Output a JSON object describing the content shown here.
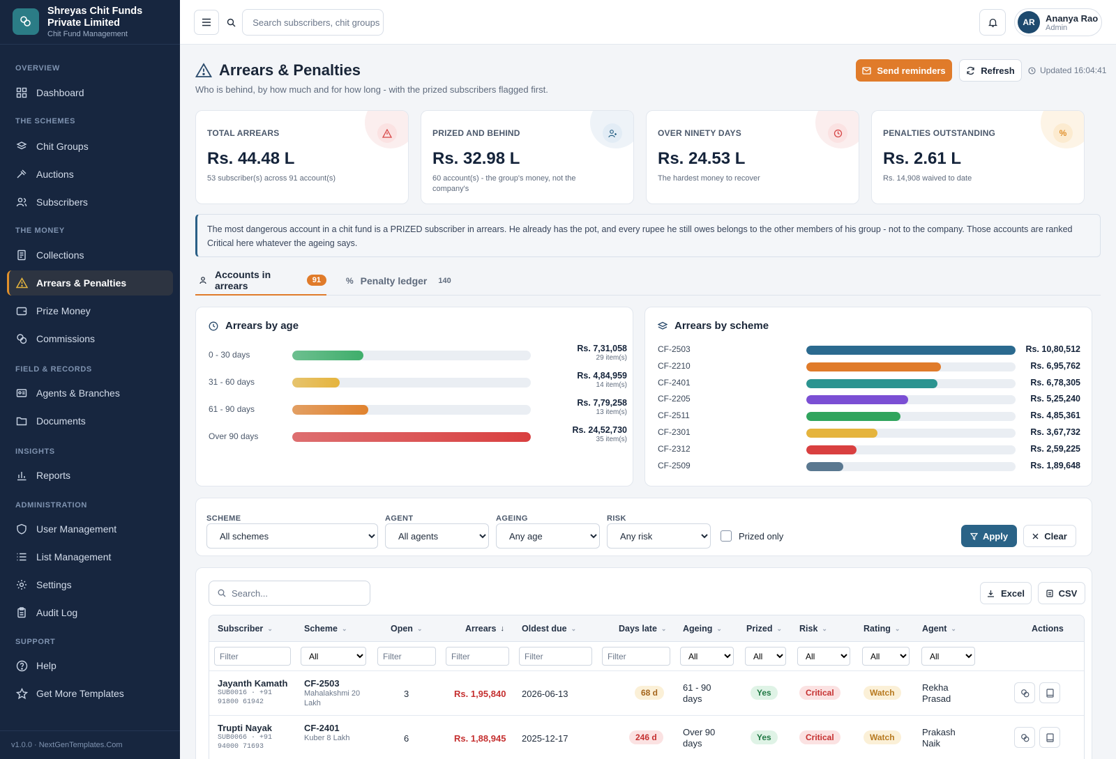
{
  "brand": {
    "name": "Shreyas Chit Funds Private Limited",
    "subtitle": "Chit Fund Management"
  },
  "nav": {
    "sections": [
      "OVERVIEW",
      "THE SCHEMES",
      "THE MONEY",
      "FIELD & RECORDS",
      "INSIGHTS",
      "ADMINISTRATION",
      "SUPPORT"
    ],
    "items": [
      "Dashboard",
      "Chit Groups",
      "Auctions",
      "Subscribers",
      "Collections",
      "Arrears & Penalties",
      "Prize Money",
      "Commissions",
      "Agents & Branches",
      "Documents",
      "Reports",
      "User Management",
      "List Management",
      "Settings",
      "Audit Log",
      "Help",
      "Get More Templates"
    ],
    "active": "Arrears & Penalties"
  },
  "version": "v1.0.0 · NextGenTemplates.Com",
  "topbar": {
    "search_placeholder": "Search subscribers, chit groups",
    "user_initials": "AR",
    "user_name": "Ananya Rao",
    "user_role": "Admin"
  },
  "page": {
    "title": "Arrears & Penalties",
    "subtitle": "Who is behind, by how much and for how long - with the prized subscribers flagged first.",
    "send_label": "Send reminders",
    "refresh_label": "Refresh",
    "updated": "Updated 16:04:41"
  },
  "kpis": [
    {
      "label": "TOTAL ARREARS",
      "value": "Rs. 44.48 L",
      "note": "53 subscriber(s) across 91 account(s)",
      "icon": "warning-icon",
      "color": "#d64545"
    },
    {
      "label": "PRIZED AND BEHIND",
      "value": "Rs. 32.98 L",
      "note": "60 account(s) - the group's money, not the company's",
      "icon": "user-icon",
      "color": "#2a6387"
    },
    {
      "label": "OVER NINETY DAYS",
      "value": "Rs. 24.53 L",
      "note": "The hardest money to recover",
      "icon": "clock-icon",
      "color": "#d64545"
    },
    {
      "label": "PENALTIES OUTSTANDING",
      "value": "Rs. 2.61 L",
      "note": "Rs. 14,908 waived to date",
      "icon": "percent-icon",
      "color": "#e0902b"
    }
  ],
  "notice": "The most dangerous account in a chit fund is a PRIZED subscriber in arrears. He already has the pot, and every rupee he still owes belongs to the other members of his group - not to the company. Those accounts are ranked Critical here whatever the ageing says.",
  "tabs": {
    "arrears_label": "Accounts in arrears",
    "arrears_count": "91",
    "penalty_label": "Penalty ledger",
    "penalty_count": "140"
  },
  "chart_data": [
    {
      "type": "bar",
      "title": "Arrears by age",
      "categories": [
        "0 - 30 days",
        "31 - 60 days",
        "61 - 90 days",
        "Over 90 days"
      ],
      "values": [
        731058,
        484959,
        779258,
        2452730
      ],
      "value_labels": [
        "Rs. 7,31,058",
        "Rs. 4,84,959",
        "Rs. 7,79,258",
        "Rs. 24,52,730"
      ],
      "counts": [
        "29 item(s)",
        "14 item(s)",
        "13 item(s)",
        "35 item(s)"
      ],
      "colors": [
        "#3fae6b",
        "#e5b43d",
        "#e0822e",
        "#d94040"
      ]
    },
    {
      "type": "bar",
      "title": "Arrears by scheme",
      "categories": [
        "CF-2503",
        "CF-2210",
        "CF-2401",
        "CF-2205",
        "CF-2511",
        "CF-2301",
        "CF-2312",
        "CF-2509"
      ],
      "values": [
        1080512,
        695762,
        678305,
        525240,
        485361,
        367732,
        259225,
        189648
      ],
      "value_labels": [
        "Rs. 10,80,512",
        "Rs. 6,95,762",
        "Rs. 6,78,305",
        "Rs. 5,25,240",
        "Rs. 4,85,361",
        "Rs. 3,67,732",
        "Rs. 2,59,225",
        "Rs. 1,89,648"
      ],
      "colors": [
        "#2b6a8f",
        "#e07b2a",
        "#2b9490",
        "#7b4fd4",
        "#30a45d",
        "#e5b43d",
        "#d94040",
        "#5a7890"
      ]
    }
  ],
  "filters": {
    "scheme_label": "SCHEME",
    "scheme_value": "All schemes",
    "agent_label": "AGENT",
    "agent_value": "All agents",
    "ageing_label": "AGEING",
    "ageing_value": "Any age",
    "risk_label": "RISK",
    "risk_value": "Any risk",
    "prized_only": "Prized only",
    "apply": "Apply",
    "clear": "Clear"
  },
  "table": {
    "search_placeholder": "Search...",
    "excel": "Excel",
    "csv": "CSV",
    "columns": [
      "Subscriber",
      "Scheme",
      "Open",
      "Arrears",
      "Oldest due",
      "Days late",
      "Ageing",
      "Prized",
      "Risk",
      "Rating",
      "Agent",
      "Actions"
    ],
    "filter_placeholder": "Filter",
    "filter_all": "All",
    "rows": [
      {
        "name": "Jayanth Kamath",
        "sub_id": "SUB0016 · +91",
        "phone": "91800 61942",
        "scheme": "CF-2503",
        "scheme_desc": "Mahalakshmi 20 Lakh",
        "open": "3",
        "arrears": "Rs. 1,95,840",
        "oldest": "2026-06-13",
        "days": "68 d",
        "ageing": "61 - 90 days",
        "prized": "Yes",
        "risk": "Critical",
        "rating": "Watch",
        "agent": "Rekha Prasad"
      },
      {
        "name": "Trupti Nayak",
        "sub_id": "SUB0066 · +91",
        "phone": "94000 71693",
        "scheme": "CF-2401",
        "scheme_desc": "Kuber 8 Lakh",
        "open": "6",
        "arrears": "Rs. 1,88,945",
        "oldest": "2025-12-17",
        "days": "246 d",
        "ageing": "Over 90 days",
        "prized": "Yes",
        "risk": "Critical",
        "rating": "Watch",
        "agent": "Prakash Naik"
      }
    ]
  }
}
